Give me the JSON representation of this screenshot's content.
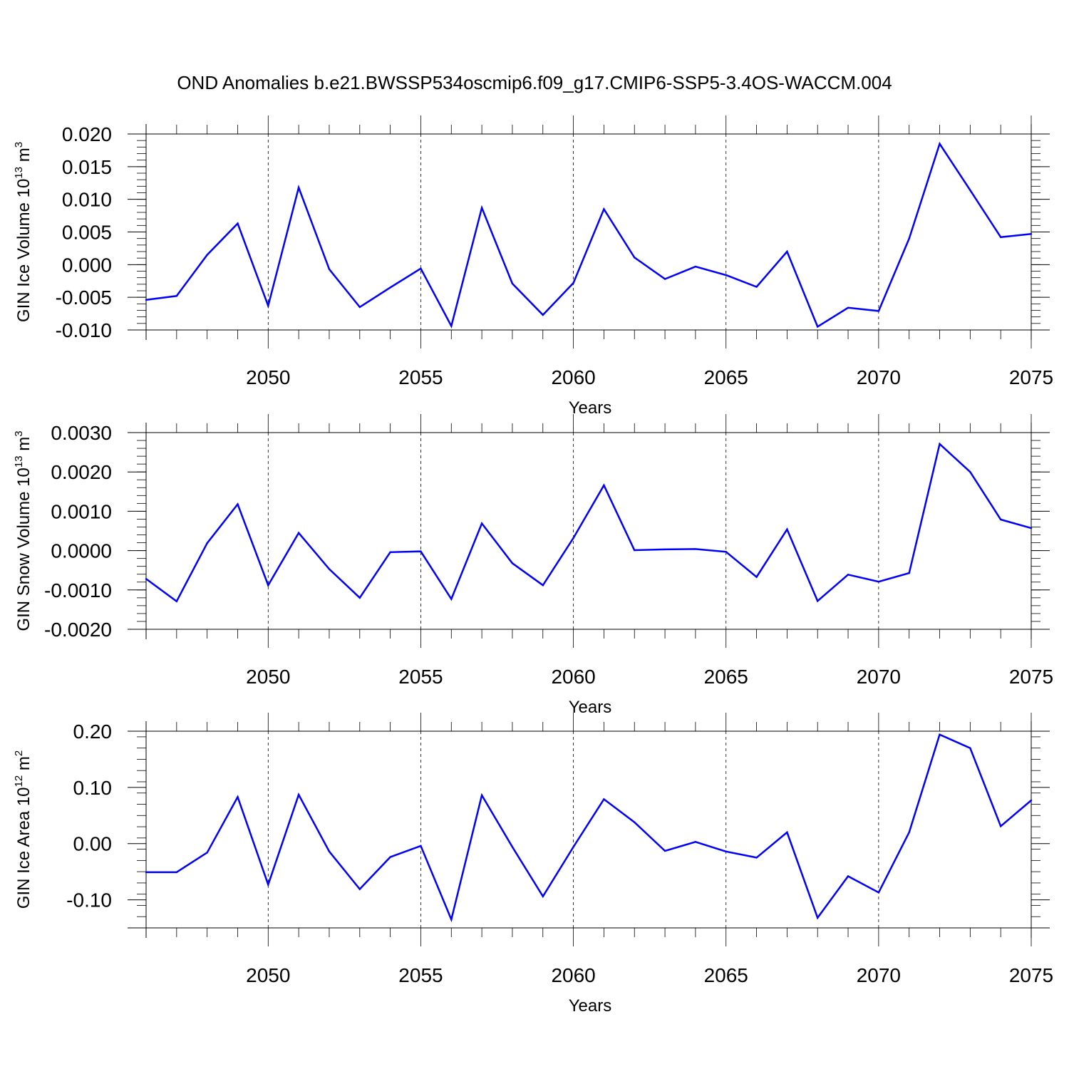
{
  "title": "OND Anomalies b.e21.BWSSP534oscmip6.f09_g17.CMIP6-SSP5-3.4OS-WACCM.004",
  "chart_data": [
    {
      "type": "line",
      "ylabel": "GIN Ice Volume 10",
      "ylabel_exp": "13",
      "ylabel_unit": " m",
      "ylabel_unit_exp": "3",
      "xlabel": "Years",
      "xlim": [
        2046,
        2075
      ],
      "ylim": [
        -0.01,
        0.02
      ],
      "yticks": [
        -0.01,
        -0.005,
        0.0,
        0.005,
        0.01,
        0.015,
        0.02
      ],
      "ytick_labels": [
        "-0.010",
        "-0.005",
        "0.000",
        "0.005",
        "0.010",
        "0.015",
        "0.020"
      ],
      "xticks": [
        2050,
        2055,
        2060,
        2065,
        2070,
        2075
      ],
      "xtick_labels": [
        "2050",
        "2055",
        "2060",
        "2065",
        "2070",
        "2075"
      ],
      "grid": "dashed vertical at major x ticks",
      "color": "#0000ff",
      "x": [
        2046,
        2047,
        2048,
        2049,
        2050,
        2051,
        2052,
        2053,
        2054,
        2055,
        2056,
        2057,
        2058,
        2059,
        2060,
        2061,
        2062,
        2063,
        2064,
        2065,
        2066,
        2067,
        2068,
        2069,
        2070,
        2071,
        2072,
        2073,
        2074,
        2075
      ],
      "values": [
        -0.0054,
        -0.0048,
        0.0015,
        0.0063,
        -0.0063,
        0.0118,
        -0.0007,
        -0.0065,
        -0.0035,
        -0.0006,
        -0.0094,
        0.0087,
        -0.0029,
        -0.0077,
        -0.0028,
        0.0085,
        0.0011,
        -0.0022,
        -0.0003,
        -0.0016,
        -0.0034,
        0.002,
        -0.0095,
        -0.0066,
        -0.0071,
        0.004,
        0.0185,
        0.0114,
        0.0042,
        0.0047
      ]
    },
    {
      "type": "line",
      "ylabel": "GIN Snow Volume 10",
      "ylabel_exp": "13",
      "ylabel_unit": " m",
      "ylabel_unit_exp": "3",
      "xlabel": "Years",
      "xlim": [
        2046,
        2075
      ],
      "ylim": [
        -0.002,
        0.003
      ],
      "yticks": [
        -0.002,
        -0.001,
        0.0,
        0.001,
        0.002,
        0.003
      ],
      "ytick_labels": [
        "-0.0020",
        "-0.0010",
        "0.0000",
        "0.0010",
        "0.0020",
        "0.0030"
      ],
      "xticks": [
        2050,
        2055,
        2060,
        2065,
        2070,
        2075
      ],
      "xtick_labels": [
        "2050",
        "2055",
        "2060",
        "2065",
        "2070",
        "2075"
      ],
      "grid": "dashed vertical at major x ticks",
      "color": "#0000ff",
      "x": [
        2046,
        2047,
        2048,
        2049,
        2050,
        2051,
        2052,
        2053,
        2054,
        2055,
        2056,
        2057,
        2058,
        2059,
        2060,
        2061,
        2062,
        2063,
        2064,
        2065,
        2066,
        2067,
        2068,
        2069,
        2070,
        2071,
        2072,
        2073,
        2074,
        2075
      ],
      "values": [
        -0.00072,
        -0.00129,
        0.00019,
        0.00118,
        -0.00088,
        0.00045,
        -0.00047,
        -0.0012,
        -4e-05,
        -2e-05,
        -0.00123,
        0.00069,
        -0.00032,
        -0.00088,
        0.00032,
        0.00166,
        1e-05,
        3e-05,
        4e-05,
        -3e-05,
        -0.00067,
        0.00054,
        -0.00128,
        -0.00061,
        -0.00079,
        -0.00057,
        0.00271,
        0.002,
        0.00079,
        0.00057
      ]
    },
    {
      "type": "line",
      "ylabel": "GIN Ice Area 10",
      "ylabel_exp": "12",
      "ylabel_unit": " m",
      "ylabel_unit_exp": "2",
      "xlabel": "Years",
      "xlim": [
        2046,
        2075
      ],
      "ylim": [
        -0.15,
        0.2
      ],
      "yticks": [
        -0.1,
        0.0,
        0.1,
        0.2
      ],
      "ytick_labels": [
        "-0.10",
        "0.00",
        "0.10",
        "0.20"
      ],
      "xticks": [
        2050,
        2055,
        2060,
        2065,
        2070,
        2075
      ],
      "xtick_labels": [
        "2050",
        "2055",
        "2060",
        "2065",
        "2070",
        "2075"
      ],
      "grid": "dashed vertical at major x ticks",
      "color": "#0000ff",
      "x": [
        2046,
        2047,
        2048,
        2049,
        2050,
        2051,
        2052,
        2053,
        2054,
        2055,
        2056,
        2057,
        2058,
        2059,
        2060,
        2061,
        2062,
        2063,
        2064,
        2065,
        2066,
        2067,
        2068,
        2069,
        2070,
        2071,
        2072,
        2073,
        2074,
        2075
      ],
      "values": [
        -0.051,
        -0.051,
        -0.016,
        0.083,
        -0.073,
        0.087,
        -0.014,
        -0.081,
        -0.024,
        -0.004,
        -0.135,
        0.086,
        -0.006,
        -0.094,
        -0.006,
        0.079,
        0.038,
        -0.013,
        0.003,
        -0.014,
        -0.025,
        0.02,
        -0.132,
        -0.058,
        -0.087,
        0.02,
        0.194,
        0.17,
        0.031,
        0.077
      ]
    }
  ]
}
